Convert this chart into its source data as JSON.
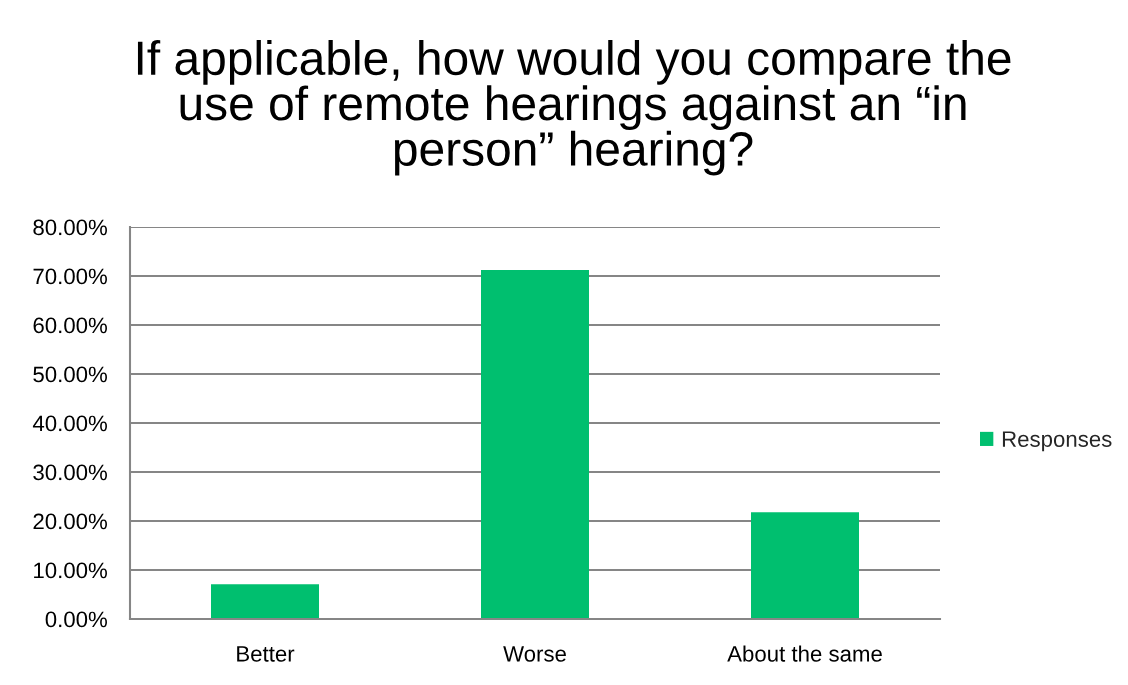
{
  "chart_data": {
    "type": "bar",
    "title": "If applicable, how would you compare the use of remote hearings against an “in person” hearing?",
    "categories": [
      "Better",
      "Worse",
      "About the same"
    ],
    "series": [
      {
        "name": "Responses",
        "color": "#00bf6f",
        "values": [
          7.1,
          71.2,
          21.8
        ]
      }
    ],
    "ylim": [
      0,
      80
    ],
    "yticks": [
      {
        "value": 0,
        "label": "0.00%"
      },
      {
        "value": 10,
        "label": "10.00%"
      },
      {
        "value": 20,
        "label": "20.00%"
      },
      {
        "value": 30,
        "label": "30.00%"
      },
      {
        "value": 40,
        "label": "40.00%"
      },
      {
        "value": 50,
        "label": "50.00%"
      },
      {
        "value": 60,
        "label": "60.00%"
      },
      {
        "value": 70,
        "label": "70.00%"
      },
      {
        "value": 80,
        "label": "80.00%"
      }
    ],
    "grid": "y",
    "legend": "right"
  }
}
